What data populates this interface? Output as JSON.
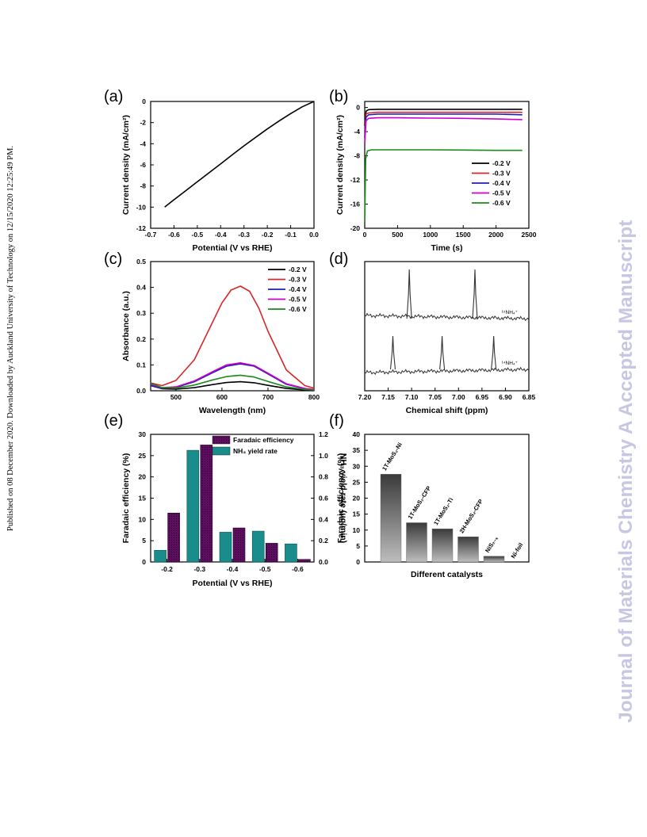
{
  "margin_note": "Published on 08 December 2020. Downloaded by Auckland University of Technology on 12/15/2020 12:25:49 PM.",
  "watermark": "Journal of Materials Chemistry A Accepted Manuscript",
  "chart_data": [
    {
      "panel": "(a)",
      "type": "line",
      "xlabel": "Potential (V vs RHE)",
      "ylabel": "Current density (mA/cm²)",
      "xlim": [
        -0.7,
        0.0
      ],
      "ylim": [
        -12,
        0
      ],
      "xticks": [
        "-0.7",
        "-0.6",
        "-0.5",
        "-0.4",
        "-0.3",
        "-0.2",
        "-0.1",
        "0.0"
      ],
      "yticks": [
        "0",
        "-2",
        "-4",
        "-6",
        "-8",
        "-10",
        "-12"
      ],
      "series": [
        {
          "color": "#000000",
          "x": [
            -0.64,
            -0.6,
            -0.55,
            -0.5,
            -0.45,
            -0.4,
            -0.35,
            -0.3,
            -0.25,
            -0.2,
            -0.15,
            -0.1,
            -0.05,
            0.0
          ],
          "y": [
            -10.0,
            -9.3,
            -8.45,
            -7.6,
            -6.75,
            -5.9,
            -5.05,
            -4.2,
            -3.4,
            -2.6,
            -1.85,
            -1.15,
            -0.5,
            0.0
          ]
        }
      ]
    },
    {
      "panel": "(b)",
      "type": "line",
      "xlabel": "Time (s)",
      "ylabel": "Current density (mA/cm²)",
      "xlim": [
        0,
        2500
      ],
      "ylim": [
        -20,
        1
      ],
      "xticks": [
        "0",
        "500",
        "1000",
        "1500",
        "2000",
        "2500"
      ],
      "yticks": [
        "0",
        "-4",
        "-8",
        "-12",
        "-16",
        "-20"
      ],
      "legend": "bottom-right",
      "series": [
        {
          "name": "-0.2 V",
          "color": "#000000",
          "x": [
            0,
            20,
            60,
            200,
            500,
            1000,
            1500,
            2000,
            2400
          ],
          "y": [
            -3.0,
            -0.6,
            -0.35,
            -0.3,
            -0.3,
            -0.3,
            -0.3,
            -0.3,
            -0.3
          ]
        },
        {
          "name": "-0.3 V",
          "color": "#d62728",
          "x": [
            0,
            20,
            60,
            200,
            500,
            1000,
            1500,
            2000,
            2400
          ],
          "y": [
            -4.0,
            -1.1,
            -0.9,
            -0.8,
            -0.8,
            -0.8,
            -0.8,
            -0.8,
            -0.8
          ]
        },
        {
          "name": "-0.4 V",
          "color": "#1f1fb4",
          "x": [
            0,
            20,
            60,
            200,
            500,
            1000,
            1500,
            2000,
            2400
          ],
          "y": [
            -5.0,
            -1.6,
            -1.2,
            -1.1,
            -1.1,
            -1.1,
            -1.1,
            -1.1,
            -1.2
          ]
        },
        {
          "name": "-0.5 V",
          "color": "#cc00cc",
          "x": [
            0,
            20,
            60,
            200,
            500,
            1000,
            1500,
            2000,
            2400
          ],
          "y": [
            -6.0,
            -2.2,
            -1.8,
            -1.7,
            -1.7,
            -1.75,
            -1.8,
            -1.9,
            -2.0
          ]
        },
        {
          "name": "-0.6 V",
          "color": "#1a8a1a",
          "x": [
            0,
            15,
            40,
            100,
            300,
            600,
            1000,
            1500,
            2000,
            2400
          ],
          "y": [
            -19.0,
            -8.5,
            -7.2,
            -7.0,
            -7.0,
            -7.0,
            -7.0,
            -7.05,
            -7.1,
            -7.1
          ]
        }
      ]
    },
    {
      "panel": "(c)",
      "type": "line",
      "xlabel": "Wavelength (nm)",
      "ylabel": "Absorbance (a.u.)",
      "xlim": [
        445,
        800
      ],
      "ylim": [
        0,
        0.5
      ],
      "xticks": [
        "500",
        "600",
        "700",
        "800"
      ],
      "yticks": [
        "0.0",
        "0.1",
        "0.2",
        "0.3",
        "0.4",
        "0.5"
      ],
      "legend": "top-right",
      "series": [
        {
          "name": "-0.2 V",
          "color": "#000000",
          "x": [
            445,
            470,
            500,
            540,
            580,
            610,
            640,
            670,
            700,
            740,
            780,
            800
          ],
          "y": [
            0.02,
            0.008,
            0.006,
            0.012,
            0.024,
            0.032,
            0.035,
            0.031,
            0.021,
            0.009,
            0.003,
            0.002
          ]
        },
        {
          "name": "-0.3 V",
          "color": "#d62728",
          "x": [
            445,
            470,
            500,
            540,
            570,
            600,
            620,
            640,
            660,
            680,
            700,
            740,
            780,
            800
          ],
          "y": [
            0.03,
            0.02,
            0.04,
            0.12,
            0.23,
            0.34,
            0.39,
            0.405,
            0.385,
            0.32,
            0.23,
            0.08,
            0.02,
            0.01
          ]
        },
        {
          "name": "-0.4 V",
          "color": "#1f1fb4",
          "x": [
            445,
            470,
            500,
            540,
            580,
            610,
            640,
            670,
            700,
            740,
            780,
            800
          ],
          "y": [
            0.02,
            0.01,
            0.013,
            0.035,
            0.07,
            0.095,
            0.104,
            0.095,
            0.065,
            0.025,
            0.008,
            0.004
          ]
        },
        {
          "name": "-0.5 V",
          "color": "#cc00cc",
          "x": [
            445,
            470,
            500,
            540,
            580,
            610,
            640,
            670,
            700,
            740,
            780,
            800
          ],
          "y": [
            0.025,
            0.012,
            0.015,
            0.038,
            0.074,
            0.1,
            0.108,
            0.098,
            0.068,
            0.027,
            0.009,
            0.005
          ]
        },
        {
          "name": "-0.6 V",
          "color": "#1a8a1a",
          "x": [
            445,
            470,
            500,
            540,
            580,
            610,
            640,
            670,
            700,
            740,
            780,
            800
          ],
          "y": [
            0.03,
            0.012,
            0.01,
            0.022,
            0.042,
            0.055,
            0.06,
            0.053,
            0.036,
            0.015,
            0.005,
            0.003
          ]
        }
      ]
    },
    {
      "panel": "(d)",
      "type": "line",
      "xlabel": "Chemical shift (ppm)",
      "xlim": [
        7.2,
        6.85
      ],
      "xticks": [
        "7.20",
        "7.15",
        "7.10",
        "7.05",
        "7.00",
        "6.95",
        "6.90",
        "6.85"
      ],
      "annotations": [
        "¹⁵NH₄⁺",
        "¹⁴NH₄⁺"
      ],
      "series": [
        {
          "name": "15NH4+",
          "color": "#333333",
          "peaks_ppm": [
            7.105,
            6.965
          ]
        },
        {
          "name": "14NH4+",
          "color": "#333333",
          "peaks_ppm": [
            7.14,
            7.035,
            6.925
          ]
        }
      ]
    },
    {
      "panel": "(e)",
      "type": "bar",
      "categories": [
        "-0.2",
        "-0.3",
        "-0.4",
        "-0.5",
        "-0.6"
      ],
      "xlabel": "Potential (V vs RHE)",
      "ylabel": "Faradaic efficiency (%)",
      "ylabel_right": "NH₃ yield rate (μg/min)",
      "ylim": [
        0,
        30
      ],
      "ylim_right": [
        0,
        1.2
      ],
      "yticks": [
        "0",
        "5",
        "10",
        "15",
        "20",
        "25",
        "30"
      ],
      "yticks_right": [
        "0.0",
        "0.2",
        "0.4",
        "0.6",
        "0.8",
        "1.0",
        "1.2"
      ],
      "legend": "top-right",
      "series": [
        {
          "name": "Faradaic efficiency",
          "color": "#5c0d5e",
          "axis": "left",
          "values": [
            11.5,
            27.5,
            8.0,
            4.4,
            0.6
          ]
        },
        {
          "name": "NH₃ yield rate",
          "color": "#1a8c8c",
          "axis": "right",
          "values": [
            0.11,
            1.05,
            0.28,
            0.29,
            0.17
          ]
        }
      ]
    },
    {
      "panel": "(f)",
      "type": "bar",
      "categories": [
        "1T-MoS₂-Ni",
        "1T-MoS₂-CFP",
        "1T-MoS₂-Ti",
        "2H-MoS₂-CFP",
        "NiS₂₋ₓ",
        "Ni-foil"
      ],
      "xlabel": "Different catalysts",
      "ylabel": "Faradaic efficiency (%)",
      "ylim": [
        0,
        40
      ],
      "yticks": [
        "0",
        "5",
        "10",
        "15",
        "20",
        "25",
        "30",
        "35",
        "40"
      ],
      "values": [
        27.5,
        12.3,
        10.4,
        7.9,
        1.8,
        0.0
      ]
    }
  ]
}
